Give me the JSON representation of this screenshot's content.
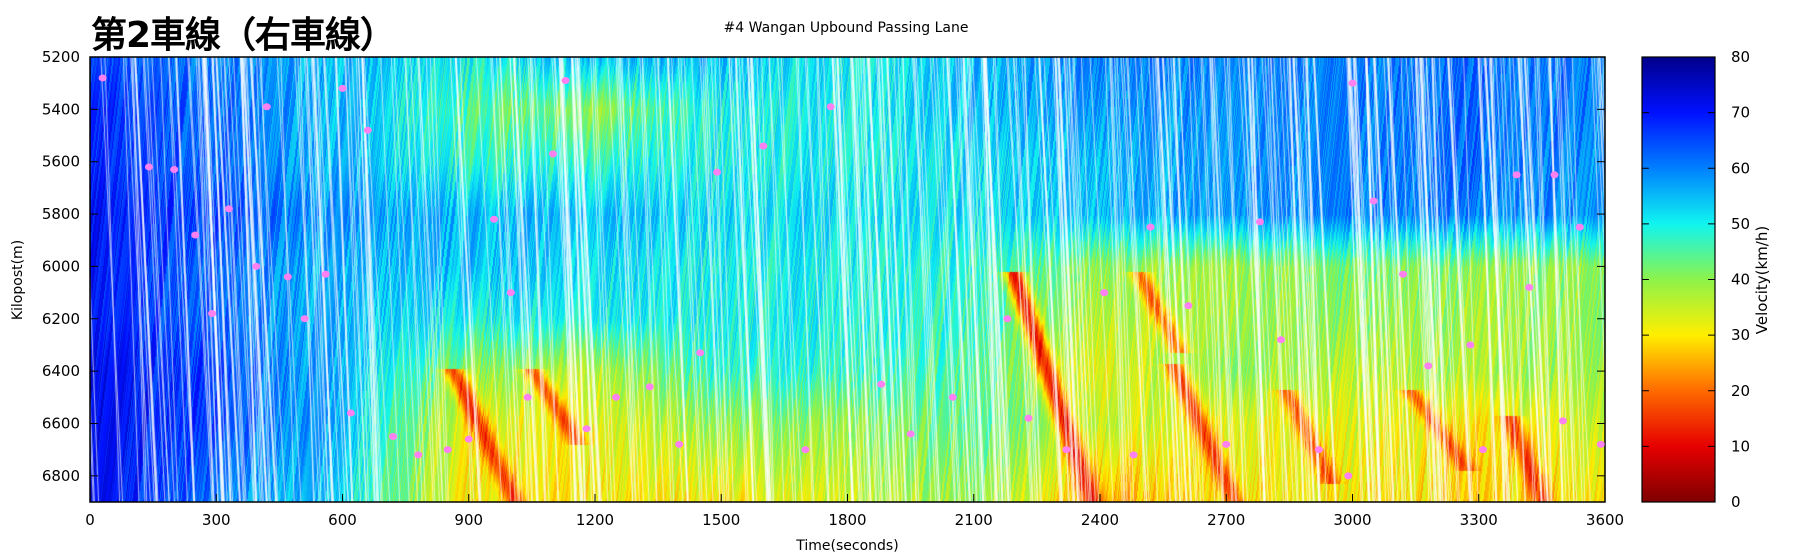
{
  "chart_data": {
    "type": "heatmap",
    "title": "第2車線（右車線）",
    "subtitle": "#4 Wangan Upbound Passing Lane",
    "xlabel": "Time(seconds)",
    "ylabel": "Kilopost(m)",
    "colorbar_label": "Velocity(km/h)",
    "xlim": [
      0,
      3600
    ],
    "ylim": [
      5200,
      6900
    ],
    "y_inverted": true,
    "x_ticks": [
      0,
      300,
      600,
      900,
      1200,
      1500,
      1800,
      2100,
      2400,
      2700,
      3000,
      3300,
      3600
    ],
    "y_ticks": [
      5200,
      5400,
      5600,
      5800,
      6000,
      6200,
      6400,
      6600,
      6800
    ],
    "colorbar_range": [
      0,
      80
    ],
    "colorbar_ticks": [
      0,
      10,
      20,
      30,
      40,
      50,
      60,
      70,
      80
    ],
    "grid_x": [
      0,
      300,
      600,
      900,
      1200,
      1500,
      1800,
      2100,
      2400,
      2700,
      3000,
      3300,
      3600
    ],
    "grid_y": [
      5200,
      5400,
      5600,
      5800,
      6000,
      6200,
      6400,
      6600,
      6900
    ],
    "velocity_grid": [
      [
        65,
        60,
        55,
        50,
        55,
        55,
        50,
        55,
        60,
        60,
        60,
        62,
        60
      ],
      [
        68,
        62,
        55,
        45,
        40,
        50,
        50,
        55,
        58,
        58,
        60,
        62,
        60
      ],
      [
        68,
        62,
        55,
        48,
        48,
        50,
        50,
        52,
        55,
        58,
        60,
        62,
        58
      ],
      [
        70,
        65,
        58,
        55,
        55,
        52,
        52,
        52,
        55,
        58,
        60,
        60,
        58
      ],
      [
        70,
        62,
        55,
        55,
        52,
        50,
        50,
        48,
        40,
        38,
        42,
        40,
        40
      ],
      [
        70,
        62,
        55,
        50,
        50,
        50,
        50,
        48,
        36,
        38,
        40,
        38,
        40
      ],
      [
        72,
        65,
        55,
        40,
        36,
        48,
        48,
        45,
        32,
        40,
        36,
        38,
        38
      ],
      [
        72,
        65,
        55,
        32,
        32,
        40,
        40,
        45,
        35,
        32,
        33,
        30,
        35
      ],
      [
        72,
        60,
        52,
        30,
        30,
        30,
        35,
        40,
        24,
        30,
        30,
        28,
        30
      ]
    ],
    "congestion_waves": [
      {
        "t_start": 870,
        "y_start": 6420,
        "t_end": 1010,
        "y_end": 6900,
        "velocity": 15
      },
      {
        "t_start": 1060,
        "y_start": 6420,
        "t_end": 1150,
        "y_end": 6650,
        "velocity": 18
      },
      {
        "t_start": 2200,
        "y_start": 6050,
        "t_end": 2380,
        "y_end": 6900,
        "velocity": 12
      },
      {
        "t_start": 2500,
        "y_start": 6050,
        "t_end": 2580,
        "y_end": 6300,
        "velocity": 20
      },
      {
        "t_start": 2580,
        "y_start": 6400,
        "t_end": 2720,
        "y_end": 6900,
        "velocity": 16
      },
      {
        "t_start": 2850,
        "y_start": 6500,
        "t_end": 2940,
        "y_end": 6800,
        "velocity": 18
      },
      {
        "t_start": 3150,
        "y_start": 6500,
        "t_end": 3260,
        "y_end": 6750,
        "velocity": 18
      },
      {
        "t_start": 3380,
        "y_start": 6600,
        "t_end": 3450,
        "y_end": 6900,
        "velocity": 15
      }
    ],
    "marker_color": "#ff80f0",
    "markers": [
      [
        30,
        5280
      ],
      [
        140,
        5620
      ],
      [
        200,
        5630
      ],
      [
        250,
        5880
      ],
      [
        290,
        6180
      ],
      [
        330,
        5780
      ],
      [
        395,
        6000
      ],
      [
        420,
        5390
      ],
      [
        470,
        6040
      ],
      [
        510,
        6200
      ],
      [
        560,
        6030
      ],
      [
        600,
        5320
      ],
      [
        620,
        6560
      ],
      [
        660,
        5480
      ],
      [
        720,
        6650
      ],
      [
        780,
        6720
      ],
      [
        850,
        6700
      ],
      [
        900,
        6660
      ],
      [
        960,
        5820
      ],
      [
        1000,
        6100
      ],
      [
        1040,
        6500
      ],
      [
        1100,
        5570
      ],
      [
        1130,
        5290
      ],
      [
        1180,
        6620
      ],
      [
        1250,
        6500
      ],
      [
        1330,
        6460
      ],
      [
        1400,
        6680
      ],
      [
        1450,
        6330
      ],
      [
        1490,
        5640
      ],
      [
        1600,
        5540
      ],
      [
        1700,
        6700
      ],
      [
        1760,
        5390
      ],
      [
        1880,
        6450
      ],
      [
        1950,
        6640
      ],
      [
        2050,
        6500
      ],
      [
        2180,
        6200
      ],
      [
        2230,
        6580
      ],
      [
        2320,
        6700
      ],
      [
        2410,
        6100
      ],
      [
        2480,
        6720
      ],
      [
        2520,
        5850
      ],
      [
        2610,
        6150
      ],
      [
        2700,
        6680
      ],
      [
        2780,
        5830
      ],
      [
        2830,
        6280
      ],
      [
        2920,
        6700
      ],
      [
        2990,
        6800
      ],
      [
        3000,
        5300
      ],
      [
        3050,
        5750
      ],
      [
        3120,
        6030
      ],
      [
        3180,
        6380
      ],
      [
        3280,
        6300
      ],
      [
        3310,
        6700
      ],
      [
        3390,
        5650
      ],
      [
        3420,
        6080
      ],
      [
        3480,
        5650
      ],
      [
        3500,
        6590
      ],
      [
        3540,
        5850
      ],
      [
        3590,
        6680
      ]
    ],
    "colormap": [
      "#7f0000",
      "#e60000",
      "#ff6a00",
      "#ffee00",
      "#8df34a",
      "#10f5f0",
      "#0080ff",
      "#0010ff",
      "#00008b"
    ]
  }
}
